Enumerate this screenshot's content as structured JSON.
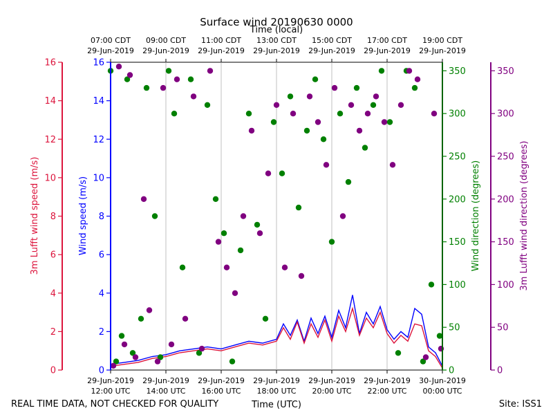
{
  "chart_data": {
    "type": "scatter",
    "title": "Surface wind 20190630 0000",
    "top_xlabel": "Time (local)",
    "xlabel": "Time (UTC)",
    "footer_left": "REAL TIME DATA, NOT CHECKED FOR QUALITY",
    "footer_right": "Site: ISS1",
    "x_range_hours": [
      12,
      24
    ],
    "x_ticks_utc": [
      {
        "hour": 12,
        "date": "29-Jun-2019",
        "time": "12:00 UTC"
      },
      {
        "hour": 14,
        "date": "29-Jun-2019",
        "time": "14:00 UTC"
      },
      {
        "hour": 16,
        "date": "29-Jun-2019",
        "time": "16:00 UTC"
      },
      {
        "hour": 18,
        "date": "29-Jun-2019",
        "time": "18:00 UTC"
      },
      {
        "hour": 20,
        "date": "29-Jun-2019",
        "time": "20:00 UTC"
      },
      {
        "hour": 22,
        "date": "29-Jun-2019",
        "time": "22:00 UTC"
      },
      {
        "hour": 24,
        "date": "30-Jun-2019",
        "time": "00:00 UTC"
      }
    ],
    "x_ticks_local": [
      {
        "hour": 12,
        "time": "07:00 CDT",
        "date": "29-Jun-2019"
      },
      {
        "hour": 14,
        "time": "09:00 CDT",
        "date": "29-Jun-2019"
      },
      {
        "hour": 16,
        "time": "11:00 CDT",
        "date": "29-Jun-2019"
      },
      {
        "hour": 18,
        "time": "13:00 CDT",
        "date": "29-Jun-2019"
      },
      {
        "hour": 20,
        "time": "15:00 CDT",
        "date": "29-Jun-2019"
      },
      {
        "hour": 22,
        "time": "17:00 CDT",
        "date": "29-Jun-2019"
      },
      {
        "hour": 24,
        "time": "19:00 CDT",
        "date": "29-Jun-2019"
      }
    ],
    "axes": {
      "lufft_speed": {
        "label": "3m Lufft wind speed (m/s)",
        "color": "#dc143c",
        "ylim": [
          0,
          16
        ],
        "ticks": [
          "0",
          "2",
          "4",
          "6",
          "8",
          "10",
          "12",
          "14",
          "16"
        ]
      },
      "speed": {
        "label": "Wind speed (m/s)",
        "color": "#0000ff",
        "ylim": [
          0,
          16
        ],
        "ticks": [
          "0",
          "2",
          "4",
          "6",
          "8",
          "10",
          "12",
          "14",
          "16"
        ]
      },
      "direction": {
        "label": "Wind direction (degrees)",
        "color": "#008000",
        "ylim": [
          0,
          360
        ],
        "ticks": [
          "0",
          "50",
          "100",
          "150",
          "200",
          "250",
          "300",
          "350"
        ]
      },
      "lufft_direction": {
        "label": "3m Lufft wind direction (degrees)",
        "color": "#800080",
        "ylim": [
          0,
          360
        ],
        "ticks": [
          "0",
          "50",
          "100",
          "150",
          "200",
          "250",
          "300",
          "350"
        ]
      }
    },
    "series": [
      {
        "name": "Wind speed",
        "kind": "line",
        "color": "#0000ff",
        "x_hours": [
          12.0,
          12.5,
          13.0,
          13.5,
          14.0,
          14.5,
          15.0,
          15.5,
          16.0,
          16.5,
          17.0,
          17.5,
          18.0,
          18.25,
          18.5,
          18.75,
          19.0,
          19.25,
          19.5,
          19.75,
          20.0,
          20.25,
          20.5,
          20.75,
          21.0,
          21.25,
          21.5,
          21.75,
          22.0,
          22.25,
          22.5,
          22.75,
          23.0,
          23.25,
          23.5,
          23.75,
          24.0
        ],
        "y": [
          0.3,
          0.4,
          0.5,
          0.7,
          0.8,
          1.0,
          1.1,
          1.2,
          1.1,
          1.3,
          1.5,
          1.4,
          1.6,
          2.4,
          1.8,
          2.6,
          1.5,
          2.7,
          1.9,
          2.8,
          1.7,
          3.1,
          2.2,
          3.9,
          1.9,
          3.0,
          2.4,
          3.3,
          2.1,
          1.6,
          2.0,
          1.7,
          3.2,
          2.9,
          1.2,
          0.9,
          0.2
        ]
      },
      {
        "name": "3m Lufft wind speed",
        "kind": "line",
        "color": "#dc143c",
        "x_hours": [
          12.0,
          12.5,
          13.0,
          13.5,
          14.0,
          14.5,
          15.0,
          15.5,
          16.0,
          16.5,
          17.0,
          17.5,
          18.0,
          18.25,
          18.5,
          18.75,
          19.0,
          19.25,
          19.5,
          19.75,
          20.0,
          20.25,
          20.5,
          20.75,
          21.0,
          21.25,
          21.5,
          21.75,
          22.0,
          22.25,
          22.5,
          22.75,
          23.0,
          23.25,
          23.5,
          23.75,
          24.0
        ],
        "y": [
          0.2,
          0.3,
          0.4,
          0.6,
          0.7,
          0.9,
          1.0,
          1.1,
          1.0,
          1.2,
          1.4,
          1.3,
          1.5,
          2.2,
          1.6,
          2.5,
          1.4,
          2.4,
          1.7,
          2.6,
          1.5,
          2.8,
          2.0,
          3.2,
          1.8,
          2.7,
          2.2,
          3.0,
          1.9,
          1.4,
          1.8,
          1.5,
          2.4,
          2.3,
          1.0,
          0.7,
          0.1
        ]
      },
      {
        "name": "Wind direction",
        "kind": "scatter",
        "color": "#008000",
        "x_hours": [
          12.0,
          12.2,
          12.4,
          12.6,
          12.8,
          13.1,
          13.3,
          13.6,
          13.8,
          14.1,
          14.3,
          14.6,
          14.9,
          15.2,
          15.5,
          15.8,
          16.1,
          16.4,
          16.7,
          17.0,
          17.3,
          17.6,
          17.9,
          18.2,
          18.5,
          18.8,
          19.1,
          19.4,
          19.7,
          20.0,
          20.3,
          20.6,
          20.9,
          21.2,
          21.5,
          21.8,
          22.1,
          22.4,
          22.7,
          23.0,
          23.3,
          23.6,
          23.9
        ],
        "y": [
          350,
          10,
          40,
          340,
          20,
          60,
          330,
          180,
          15,
          350,
          300,
          120,
          340,
          20,
          310,
          200,
          160,
          10,
          140,
          300,
          170,
          60,
          290,
          230,
          320,
          190,
          280,
          340,
          270,
          150,
          300,
          220,
          330,
          260,
          310,
          350,
          290,
          20,
          350,
          330,
          10,
          100,
          40
        ]
      },
      {
        "name": "3m Lufft wind direction",
        "kind": "scatter",
        "color": "#800080",
        "x_hours": [
          12.1,
          12.3,
          12.5,
          12.7,
          12.9,
          13.2,
          13.4,
          13.7,
          13.9,
          14.2,
          14.4,
          14.7,
          15.0,
          15.3,
          15.6,
          15.9,
          16.2,
          16.5,
          16.8,
          17.1,
          17.4,
          17.7,
          18.0,
          18.3,
          18.6,
          18.9,
          19.2,
          19.5,
          19.8,
          20.1,
          20.4,
          20.7,
          21.0,
          21.3,
          21.6,
          21.9,
          22.2,
          22.5,
          22.8,
          23.1,
          23.4,
          23.7,
          23.95
        ],
        "y": [
          5,
          355,
          30,
          345,
          15,
          200,
          70,
          10,
          330,
          30,
          340,
          60,
          320,
          25,
          350,
          150,
          120,
          90,
          180,
          280,
          160,
          230,
          310,
          120,
          300,
          110,
          320,
          290,
          240,
          330,
          180,
          310,
          280,
          300,
          320,
          290,
          240,
          310,
          350,
          340,
          15,
          300,
          25
        ]
      }
    ]
  }
}
